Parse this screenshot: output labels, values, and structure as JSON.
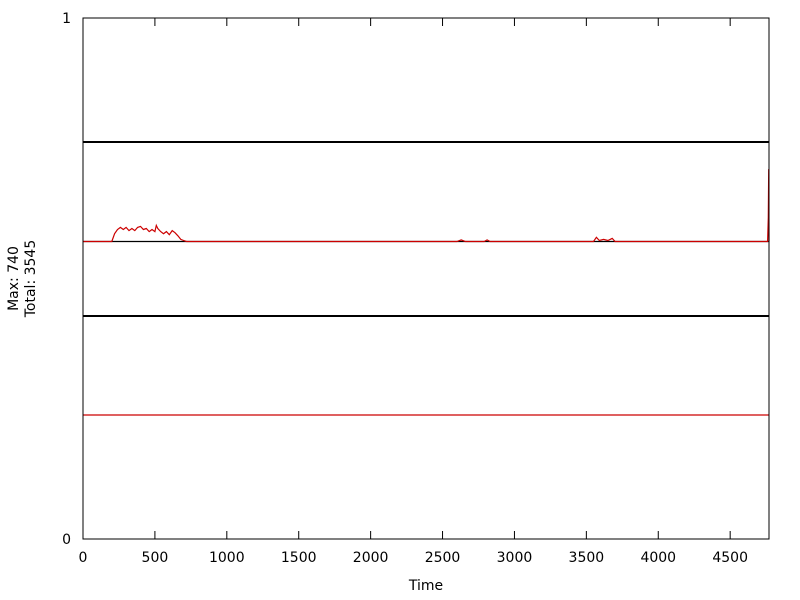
{
  "chart_data": {
    "type": "line",
    "xlabel": "Time",
    "ylabel_lines": [
      "Max: 740",
      "Total: 3545"
    ],
    "xlim": [
      0,
      4770
    ],
    "ylim": [
      0,
      1
    ],
    "x_ticks": [
      0,
      500,
      1000,
      1500,
      2000,
      2500,
      3000,
      3500,
      4000,
      4500
    ],
    "y_ticks": [
      0,
      1
    ],
    "grid": false,
    "legend": "none",
    "colors": {
      "black": "#000000",
      "red": "#cc0000"
    },
    "separators": [
      {
        "color": "#000000",
        "y": 0.762
      },
      {
        "color": "#000000",
        "y": 0.428
      }
    ],
    "series": [
      {
        "color": "#000000",
        "points": [
          [
            0,
            0.571
          ],
          [
            4770,
            0.571
          ]
        ]
      },
      {
        "color": "#cc0000",
        "points": [
          [
            0,
            0.571
          ],
          [
            200,
            0.571
          ],
          [
            220,
            0.586
          ],
          [
            240,
            0.594
          ],
          [
            260,
            0.598
          ],
          [
            280,
            0.594
          ],
          [
            300,
            0.598
          ],
          [
            320,
            0.592
          ],
          [
            340,
            0.596
          ],
          [
            360,
            0.592
          ],
          [
            380,
            0.598
          ],
          [
            400,
            0.6
          ],
          [
            420,
            0.594
          ],
          [
            440,
            0.596
          ],
          [
            460,
            0.59
          ],
          [
            480,
            0.594
          ],
          [
            500,
            0.59
          ],
          [
            510,
            0.602
          ],
          [
            520,
            0.596
          ],
          [
            540,
            0.59
          ],
          [
            560,
            0.586
          ],
          [
            580,
            0.59
          ],
          [
            600,
            0.584
          ],
          [
            620,
            0.592
          ],
          [
            640,
            0.588
          ],
          [
            660,
            0.582
          ],
          [
            680,
            0.575
          ],
          [
            700,
            0.573
          ],
          [
            720,
            0.571
          ],
          [
            2600,
            0.571
          ],
          [
            2630,
            0.574
          ],
          [
            2660,
            0.571
          ],
          [
            2790,
            0.571
          ],
          [
            2810,
            0.574
          ],
          [
            2830,
            0.571
          ],
          [
            3550,
            0.571
          ],
          [
            3570,
            0.579
          ],
          [
            3590,
            0.573
          ],
          [
            3620,
            0.575
          ],
          [
            3650,
            0.573
          ],
          [
            3680,
            0.577
          ],
          [
            3700,
            0.571
          ],
          [
            4760,
            0.571
          ],
          [
            4765,
            0.617
          ],
          [
            4768,
            0.71
          ],
          [
            4770,
            0.571
          ]
        ]
      },
      {
        "color": "#cc0000",
        "points": [
          [
            0,
            0.238
          ],
          [
            4770,
            0.238
          ]
        ]
      }
    ]
  }
}
